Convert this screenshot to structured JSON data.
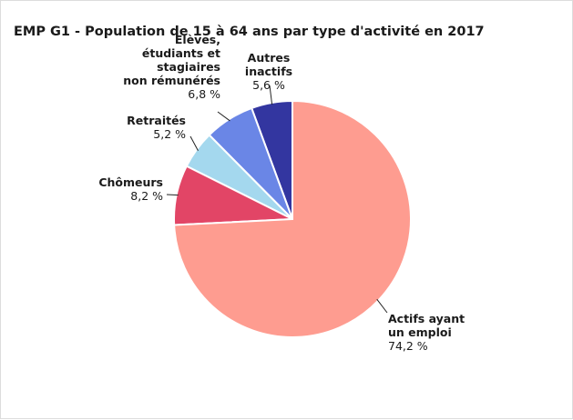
{
  "chart_data": {
    "type": "pie",
    "title": "EMP G1 - Population de 15 à 64 ans par type d'activité en 2017",
    "slices": [
      {
        "label": "Autres\ninactifs",
        "value": 5.6,
        "value_label": "5,6 %",
        "color": "#3336a0"
      },
      {
        "label": "Elèves,\nétudiants et\nstagiaires\nnon rémunérés",
        "value": 6.8,
        "value_label": "6,8 %",
        "color": "#6a86e6"
      },
      {
        "label": "Retraités",
        "value": 5.2,
        "value_label": "5,2 %",
        "color": "#a4d8ee"
      },
      {
        "label": "Chômeurs",
        "value": 8.2,
        "value_label": "8,2 %",
        "color": "#e24566"
      },
      {
        "label": "Actifs ayant\nun emploi",
        "value": 74.2,
        "value_label": "74,2 %",
        "color": "#fe9c90"
      }
    ],
    "legend": "none"
  }
}
